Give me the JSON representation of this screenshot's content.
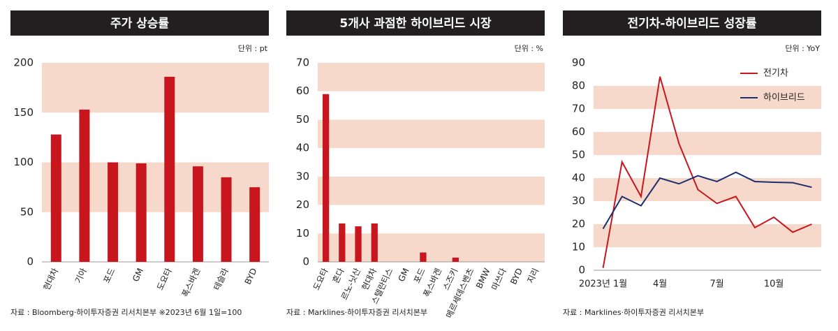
{
  "chart_data": [
    {
      "type": "bar",
      "title": "주가 상승률",
      "unit": "단위 : pt",
      "source": "자료 : Bloomberg·하이투자증권 리서치본부 ※2023년 6월 1일=100",
      "categories": [
        "현대차",
        "기아",
        "포드",
        "GM",
        "도요타",
        "폭스바겐",
        "테슬라",
        "BYD"
      ],
      "values": [
        128,
        153,
        100,
        99,
        186,
        96,
        85,
        75
      ],
      "color": "#c8161e",
      "ylim": [
        0,
        200
      ],
      "yticks": [
        0,
        50,
        100,
        150,
        200
      ]
    },
    {
      "type": "bar",
      "title": "5개사 과점한 하이브리드 시장",
      "unit": "단위 : %",
      "source": "자료 : Marklines·하이투자증권 리서치본부",
      "categories": [
        "도요타",
        "혼다",
        "르노-닛산",
        "현대차",
        "스텔란티스",
        "GM",
        "포드",
        "폭스바겐",
        "스즈키",
        "메르세데스벤츠",
        "BMW",
        "마쓰다",
        "BYD",
        "지리"
      ],
      "values": [
        59,
        13.5,
        12.5,
        13.5,
        0,
        0,
        3.3,
        0,
        1.5,
        0,
        0,
        0,
        0,
        0
      ],
      "color": "#c8161e",
      "ylim": [
        0,
        70
      ],
      "yticks": [
        0,
        10,
        20,
        30,
        40,
        50,
        60,
        70
      ]
    },
    {
      "type": "line",
      "title": "전기차-하이브리드 성장률",
      "unit": "단위 : YoY",
      "source": "자료 : Marklines·하이투자증권 리서치본부",
      "categories": [
        "2023년 1월",
        null,
        null,
        "4월",
        null,
        null,
        "7월",
        null,
        null,
        "10월",
        null,
        null
      ],
      "series": [
        {
          "name": "전기차",
          "color": "#c8161e",
          "values": [
            1,
            47,
            32,
            84,
            55,
            35,
            29,
            32,
            18.5,
            23,
            16.5,
            20
          ]
        },
        {
          "name": "하이브리드",
          "color": "#1b2f6e",
          "values": [
            18,
            32,
            28,
            40,
            37.5,
            41,
            38.5,
            42.5,
            38.5,
            38.2,
            38,
            36
          ]
        }
      ],
      "ylim": [
        0,
        90
      ],
      "yticks": [
        0,
        10,
        20,
        30,
        40,
        50,
        60,
        70,
        80,
        90
      ],
      "legend": "top-right"
    }
  ]
}
